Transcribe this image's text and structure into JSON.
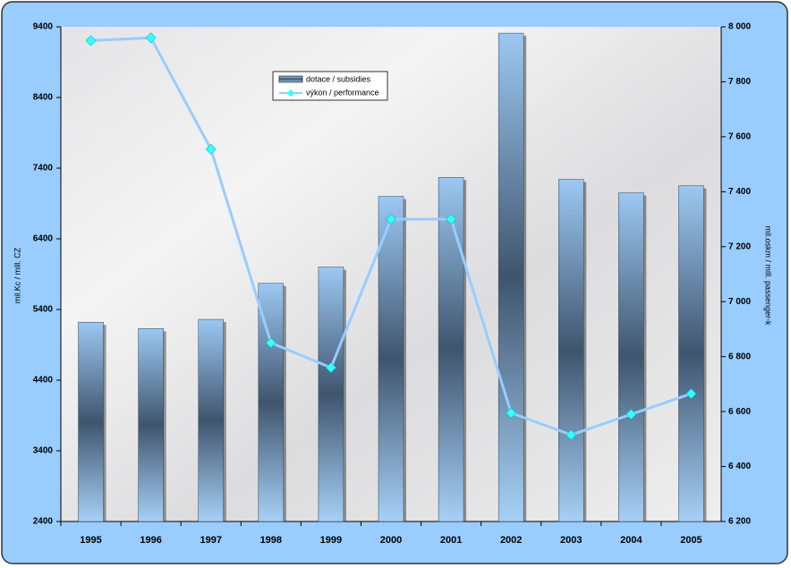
{
  "chart_data": {
    "type": "bar-line",
    "categories": [
      "1995",
      "1996",
      "1997",
      "1998",
      "1999",
      "2000",
      "2001",
      "2002",
      "2003",
      "2004",
      "2005"
    ],
    "series": [
      {
        "name": "dotace / subsidies",
        "type": "bar",
        "color": "#4a6480",
        "values": [
          5220,
          5130,
          5260,
          5770,
          6000,
          7000,
          7270,
          9310,
          7240,
          7050,
          7150
        ]
      },
      {
        "name": "výkon / performance",
        "type": "line",
        "color": "#99ccff",
        "axis": "y2",
        "values": [
          7950,
          7960,
          7555,
          6850,
          6760,
          7300,
          7300,
          6595,
          6515,
          6590,
          6665
        ]
      }
    ],
    "y_label": "mil.Kc / mill. CZ",
    "y2_label": "mil.oskm / mill. passenger-k",
    "ylim": [
      2400,
      9400
    ],
    "yticks": [
      2400,
      3400,
      4400,
      5400,
      6400,
      7400,
      8400,
      9400
    ],
    "y2lim": [
      6200,
      8000
    ],
    "y2ticks": [
      {
        "value": 6200,
        "label": "6 200"
      },
      {
        "value": 6400,
        "label": "6 400"
      },
      {
        "value": 6600,
        "label": "6 600"
      },
      {
        "value": 6800,
        "label": "6 800"
      },
      {
        "value": 7000,
        "label": "7 000"
      },
      {
        "value": 7200,
        "label": "7 200"
      },
      {
        "value": 7400,
        "label": "7 400"
      },
      {
        "value": 7600,
        "label": "7 600"
      },
      {
        "value": 7800,
        "label": "7 800"
      },
      {
        "value": 8000,
        "label": "8 000"
      }
    ],
    "marker_color": "#33ffff"
  }
}
